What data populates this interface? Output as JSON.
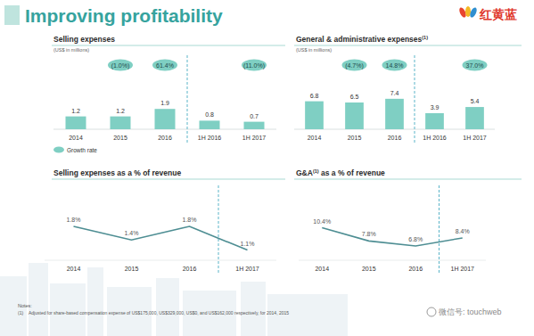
{
  "header": {
    "title": "Improving profitability",
    "logo_text": "红黄蓝"
  },
  "chart_data": [
    {
      "type": "bar",
      "title_parts": [
        "Selling expenses"
      ],
      "subtitle": "(US$ in millions)",
      "categories": [
        "2014",
        "2015",
        "2016",
        "1H 2016",
        "1H 2017"
      ],
      "values": [
        1.2,
        1.2,
        1.9,
        0.8,
        0.7
      ],
      "color": "#7fcfc3",
      "ylim": [
        0,
        5
      ],
      "data_labels": true,
      "tick_labels": "x",
      "legend": "bottom left",
      "growth_rates": {
        "name": "Growth rate",
        "values": [
          null,
          -1.0,
          61.4,
          null,
          -11.0
        ],
        "value_labels": [
          null,
          "(1.0%)",
          "61.4%",
          null,
          "(11.0%)"
        ],
        "color": "#7fcfc3"
      }
    },
    {
      "type": "bar",
      "title_parts": [
        "General & administrative expenses",
        "(1)"
      ],
      "subtitle": "(US$ in millions)",
      "categories": [
        "2014",
        "2015",
        "2016",
        "1H 2016",
        "1H 2017"
      ],
      "values": [
        6.8,
        6.5,
        7.4,
        3.9,
        5.4
      ],
      "color": "#7fcfc3",
      "ylim": [
        0,
        13
      ],
      "data_labels": true,
      "tick_labels": "x",
      "growth_rates": {
        "name": "Growth rate",
        "values": [
          null,
          -4.7,
          14.8,
          null,
          37.0
        ],
        "value_labels": [
          null,
          "(4.7%)",
          "14.8%",
          null,
          "37.0%"
        ],
        "color": "#7fcfc3"
      }
    },
    {
      "type": "line",
      "title_parts": [
        "Selling expenses as a % of revenue"
      ],
      "categories": [
        "2014",
        "2015",
        "2016",
        "1H 2017"
      ],
      "values": [
        1.8,
        1.4,
        1.8,
        1.1
      ],
      "value_labels": [
        "1.8%",
        "1.4%",
        "1.8%",
        "1.1%"
      ],
      "color": "#4e8e93",
      "ylim": [
        0.8,
        2.3
      ],
      "data_labels": true,
      "tick_labels": "x",
      "marker": "none",
      "line_style": "solid"
    },
    {
      "type": "line",
      "title_parts": [
        "G&A",
        "(1)",
        " as a % of revenue"
      ],
      "categories": [
        "2014",
        "2015",
        "2016",
        "1H 2017"
      ],
      "values": [
        10.4,
        7.8,
        6.8,
        8.4
      ],
      "value_labels": [
        "10.4%",
        "7.8%",
        "6.8%",
        "8.4%"
      ],
      "color": "#4e8e93",
      "ylim": [
        4,
        14
      ],
      "data_labels": true,
      "tick_labels": "x",
      "marker": "none",
      "line_style": "solid"
    }
  ],
  "notes": {
    "heading": "Notes:",
    "items": [
      {
        "marker": "(1)",
        "text": "Adjusted for share-based compensation expense of US$175,000, US$329,000, US$0, and US$162,000 respectively, for 2014, 2015"
      }
    ]
  },
  "watermark": "微信号: touchweb"
}
